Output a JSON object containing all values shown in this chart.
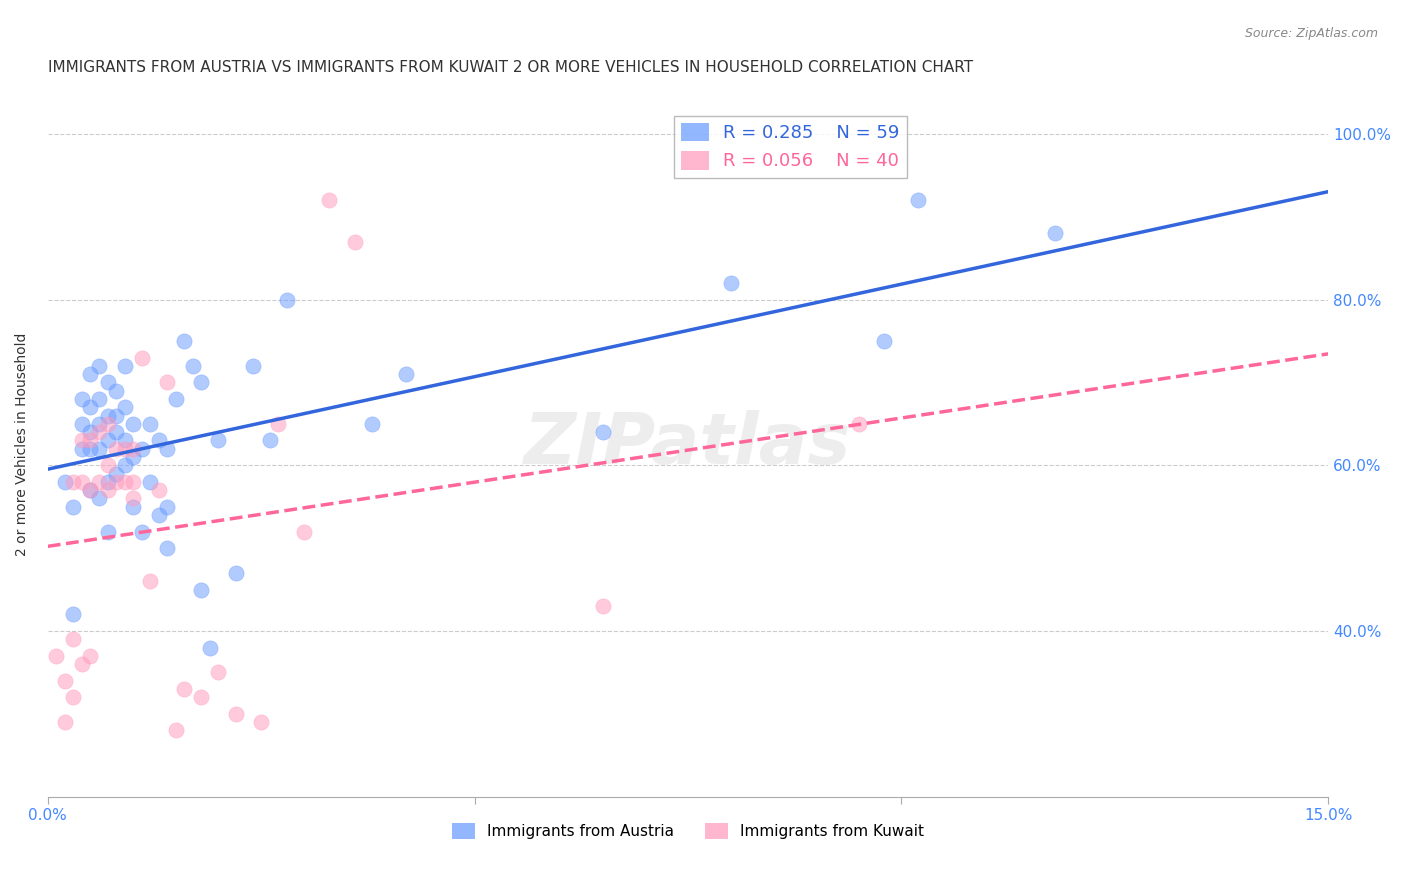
{
  "title": "IMMIGRANTS FROM AUSTRIA VS IMMIGRANTS FROM KUWAIT 2 OR MORE VEHICLES IN HOUSEHOLD CORRELATION CHART",
  "source": "Source: ZipAtlas.com",
  "ylabel": "2 or more Vehicles in Household",
  "x_min": 0.0,
  "x_max": 0.15,
  "y_min": 0.2,
  "y_max": 1.05,
  "x_ticks": [
    0.0,
    0.05,
    0.1,
    0.15
  ],
  "x_tick_labels": [
    "0.0%",
    "",
    "",
    "15.0%"
  ],
  "y_ticks": [
    0.4,
    0.6,
    0.8,
    1.0
  ],
  "y_tick_labels": [
    "40.0%",
    "60.0%",
    "80.0%",
    "100.0%"
  ],
  "austria_color": "#6699ff",
  "kuwait_color": "#ff99bb",
  "austria_line_color": "#3366dd",
  "kuwait_line_color": "#ff6699",
  "austria_marker_size": 120,
  "kuwait_marker_size": 120,
  "austria_alpha": 0.5,
  "kuwait_alpha": 0.5,
  "austria_R": 0.285,
  "austria_N": 59,
  "kuwait_R": 0.056,
  "kuwait_N": 40,
  "austria_x": [
    0.002,
    0.003,
    0.003,
    0.004,
    0.004,
    0.004,
    0.005,
    0.005,
    0.005,
    0.005,
    0.005,
    0.006,
    0.006,
    0.006,
    0.006,
    0.006,
    0.007,
    0.007,
    0.007,
    0.007,
    0.007,
    0.008,
    0.008,
    0.008,
    0.008,
    0.009,
    0.009,
    0.009,
    0.009,
    0.01,
    0.01,
    0.01,
    0.011,
    0.011,
    0.012,
    0.012,
    0.013,
    0.013,
    0.014,
    0.014,
    0.014,
    0.015,
    0.016,
    0.017,
    0.018,
    0.018,
    0.019,
    0.02,
    0.022,
    0.024,
    0.026,
    0.028,
    0.038,
    0.042,
    0.065,
    0.08,
    0.098,
    0.102,
    0.118
  ],
  "austria_y": [
    0.58,
    0.42,
    0.55,
    0.62,
    0.65,
    0.68,
    0.57,
    0.62,
    0.64,
    0.67,
    0.71,
    0.56,
    0.62,
    0.65,
    0.68,
    0.72,
    0.52,
    0.58,
    0.63,
    0.66,
    0.7,
    0.59,
    0.64,
    0.66,
    0.69,
    0.6,
    0.63,
    0.67,
    0.72,
    0.55,
    0.61,
    0.65,
    0.52,
    0.62,
    0.58,
    0.65,
    0.54,
    0.63,
    0.5,
    0.55,
    0.62,
    0.68,
    0.75,
    0.72,
    0.45,
    0.7,
    0.38,
    0.63,
    0.47,
    0.72,
    0.63,
    0.8,
    0.65,
    0.71,
    0.64,
    0.82,
    0.75,
    0.92,
    0.88
  ],
  "kuwait_x": [
    0.001,
    0.002,
    0.002,
    0.003,
    0.003,
    0.003,
    0.004,
    0.004,
    0.004,
    0.005,
    0.005,
    0.005,
    0.006,
    0.006,
    0.007,
    0.007,
    0.007,
    0.008,
    0.008,
    0.009,
    0.009,
    0.01,
    0.01,
    0.01,
    0.011,
    0.012,
    0.013,
    0.014,
    0.015,
    0.016,
    0.018,
    0.02,
    0.022,
    0.025,
    0.027,
    0.03,
    0.033,
    0.036,
    0.065,
    0.095
  ],
  "kuwait_y": [
    0.37,
    0.29,
    0.34,
    0.32,
    0.39,
    0.58,
    0.36,
    0.58,
    0.63,
    0.37,
    0.57,
    0.63,
    0.58,
    0.64,
    0.57,
    0.6,
    0.65,
    0.58,
    0.62,
    0.58,
    0.62,
    0.56,
    0.58,
    0.62,
    0.73,
    0.46,
    0.57,
    0.7,
    0.28,
    0.33,
    0.32,
    0.35,
    0.3,
    0.29,
    0.65,
    0.52,
    0.92,
    0.87,
    0.43,
    0.65
  ],
  "background_color": "#ffffff",
  "grid_color": "#cccccc",
  "title_fontsize": 11,
  "source_fontsize": 9,
  "axis_label_fontsize": 10,
  "tick_label_color": "#4488ff",
  "legend_fontsize": 13
}
